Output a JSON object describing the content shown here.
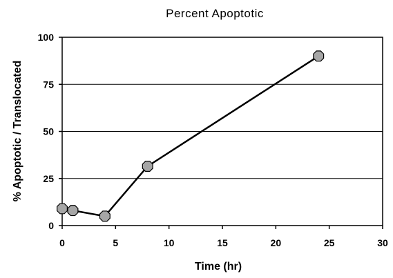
{
  "chart_data": {
    "type": "line",
    "title": "Percent Apoptotic",
    "xlabel": "Time (hr)",
    "ylabel": "% Apoptotic / Translocated",
    "xlim": [
      0,
      30
    ],
    "ylim": [
      0,
      100
    ],
    "x_ticks": [
      "0",
      "5",
      "10",
      "15",
      "20",
      "25",
      "30"
    ],
    "y_ticks": [
      "0",
      "25",
      "50",
      "75",
      "100"
    ],
    "grid": "horizontal",
    "legend": "none",
    "series": [
      {
        "x": [
          0,
          1,
          4,
          8,
          24
        ],
        "values": [
          9,
          8,
          5,
          31.5,
          90
        ],
        "line_color": "#000000",
        "marker": "octagon",
        "marker_fill": "#a6a6a6"
      }
    ]
  }
}
